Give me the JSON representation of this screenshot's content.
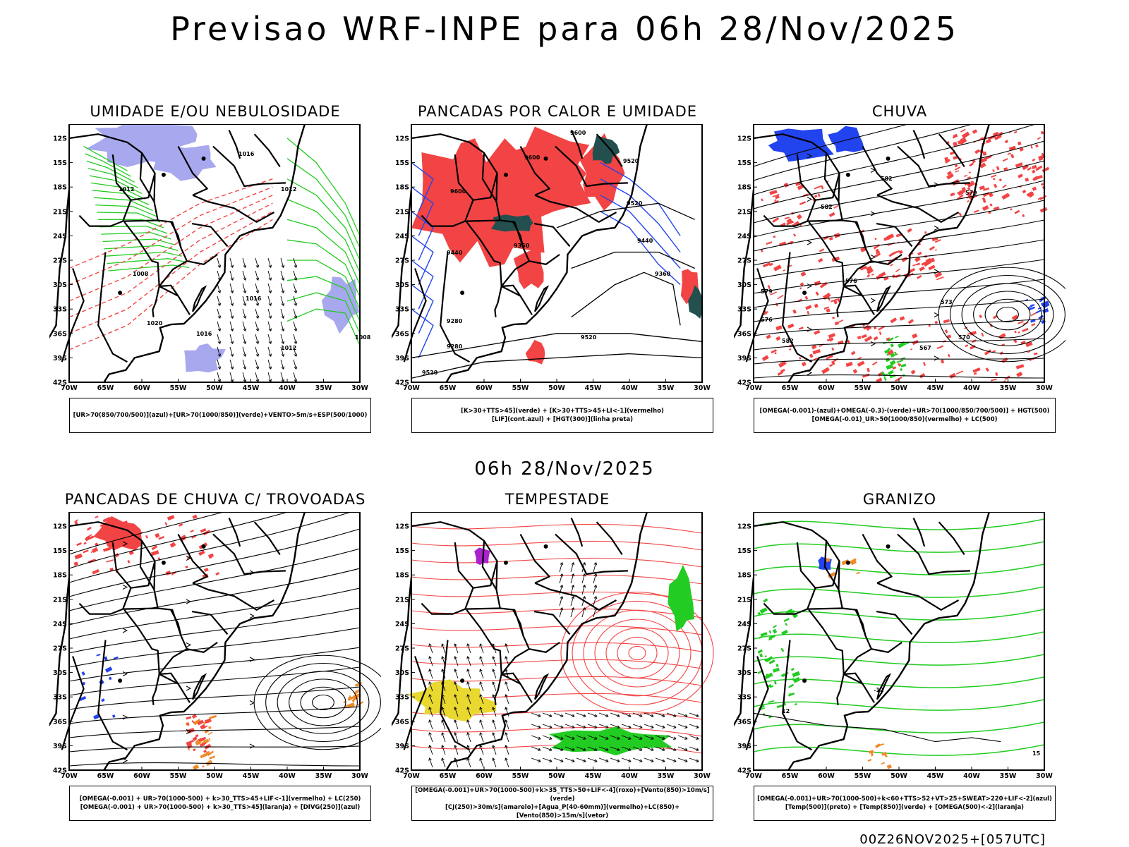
{
  "title": "Previsao WRF-INPE  para 06h 28/Nov/2025",
  "subtitle": "06h 28/Nov/2025",
  "footer": "00Z26NOV2025+[057UTC]",
  "axes": {
    "lat_labels": [
      "12S",
      "15S",
      "18S",
      "21S",
      "24S",
      "27S",
      "30S",
      "33S",
      "36S",
      "39S",
      "42S"
    ],
    "lon_labels": [
      "70W",
      "65W",
      "60W",
      "55W",
      "50W",
      "45W",
      "40W",
      "35W",
      "30W"
    ]
  },
  "colors": {
    "blue_fill": "#a8a8ee",
    "green": "#22cc22",
    "red": "#f24444",
    "blue": "#2244ee",
    "dark_teal": "#234f4f",
    "yellow": "#e8d830",
    "orange": "#f08a2a",
    "purple": "#aa22cc"
  },
  "panels": [
    {
      "title": "UMIDADE E/OU NEBULOSIDADE",
      "legend": [
        "[UR>70(850/700/500)](azul)+[UR>70(1000/850)](verde)+VENTO>5m/s+ESP(500/1000)"
      ],
      "contour_labels": [
        "1012",
        "1008",
        "1016",
        "1012",
        "1016",
        "1020",
        "1012",
        "1016",
        "1008"
      ]
    },
    {
      "title": "PANCADAS POR CALOR E UMIDADE",
      "legend": [
        "[K>30+TTS>45](verde) + [K>30+TTS>45+LI<-1](vermelho)",
        "[LIF](cont.azul) + [HGT(300)](linha preta)"
      ],
      "contour_labels": [
        "9600",
        "9600",
        "9600",
        "9520",
        "9520",
        "9440",
        "9360",
        "9440",
        "9360",
        "9280",
        "9280",
        "9520",
        "9520"
      ]
    },
    {
      "title": "CHUVA",
      "legend": [
        "[OMEGA(-0.001)-(azul)+OMEGA(-0.3)-(verde)+UR>70(1000/850/700/500)] + HGT(500)",
        "[OMEGA(-0.01)_UR>50(1000/850)(vermelho) + LC(500)"
      ],
      "contour_labels": [
        "582",
        "582",
        "579",
        "576",
        "573",
        "570",
        "567",
        "576",
        "582",
        "579"
      ]
    },
    {
      "title": "PANCADAS DE CHUVA C/ TROVOADAS",
      "legend": [
        "[OMEGA(-0.001) + UR>70(1000-500) + k>30_TTS>45+LIF<-1](vermelho) + LC(250)",
        "[OMEGA(-0.001) + UR>70(1000-500) + k>30_TTS>45](laranja) + [DIVG(250)](azul)"
      ],
      "contour_labels": []
    },
    {
      "title": "TEMPESTADE",
      "legend": [
        "[OMEGA(-0.001)+UR>70(1000-500)+k>35_TTS>50+LIF<-4](roxo)+[Vento(850)>10m/s](verde)",
        "[CJ(250)>30m/s](amarelo)+[Agua_P(40-60mm)](vermelho)+LC(850)+[Vento(850)>15m/s](vetor)"
      ],
      "contour_labels": []
    },
    {
      "title": "GRANIZO",
      "legend": [
        "[OMEGA(-0.001)+UR>70(1000-500)+k<60+TTS>52+VT>25+SWEAT>220+LIF<-2](azul)",
        "[Temp(500)](preto) + [Temp(850)](verde) + [OMEGA(500)<-2](laranja)"
      ],
      "contour_labels": [
        "-12",
        "12",
        "15"
      ]
    }
  ]
}
